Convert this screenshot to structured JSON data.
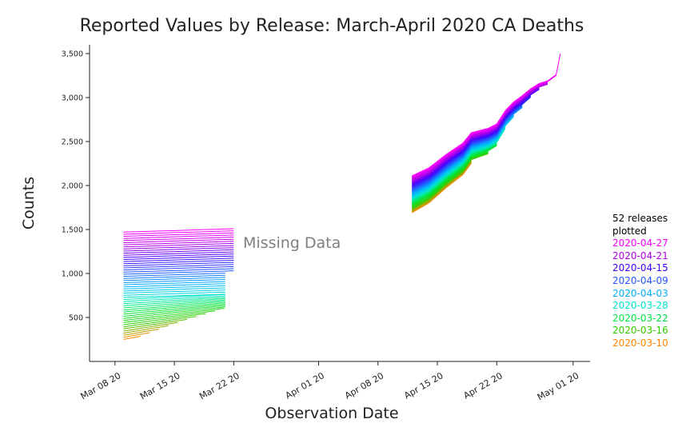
{
  "chart_data": {
    "type": "line",
    "title": "Reported Values by Release: March-April 2020 CA Deaths",
    "xlabel": "Observation Date",
    "ylabel": "Counts",
    "annotation": "Missing Data",
    "x_range": [
      "2020-03-05",
      "2020-05-03"
    ],
    "ylim": [
      0,
      3600
    ],
    "x_ticks": [
      {
        "date": "2020-03-08",
        "label": "Mar 08 20"
      },
      {
        "date": "2020-03-15",
        "label": "Mar 15 20"
      },
      {
        "date": "2020-03-22",
        "label": "Mar 22 20"
      },
      {
        "date": "2020-04-01",
        "label": "Apr 01 20"
      },
      {
        "date": "2020-04-08",
        "label": "Apr 08 20"
      },
      {
        "date": "2020-04-15",
        "label": "Apr 15 20"
      },
      {
        "date": "2020-04-22",
        "label": "Apr 22 20"
      },
      {
        "date": "2020-05-01",
        "label": "May 01 20"
      }
    ],
    "y_ticks": [
      {
        "value": 500,
        "label": "500"
      },
      {
        "value": 1000,
        "label": "1,000"
      },
      {
        "value": 1500,
        "label": "1,500"
      },
      {
        "value": 2000,
        "label": "2,000"
      },
      {
        "value": 2500,
        "label": "2,500"
      },
      {
        "value": 3000,
        "label": "3,000"
      },
      {
        "value": 3500,
        "label": "3,500"
      }
    ],
    "grid": false,
    "legend_position": "right",
    "legend_title": "52 releases\nplotted",
    "legend": [
      {
        "label": "2020-04-27",
        "color": "#ff00ff"
      },
      {
        "label": "2020-04-21",
        "color": "#b300e6"
      },
      {
        "label": "2020-04-15",
        "color": "#4400ff"
      },
      {
        "label": "2020-04-09",
        "color": "#2255ff"
      },
      {
        "label": "2020-04-03",
        "color": "#00b0ff"
      },
      {
        "label": "2020-03-28",
        "color": "#00e6cc"
      },
      {
        "label": "2020-03-22",
        "color": "#00e640"
      },
      {
        "label": "2020-03-16",
        "color": "#33cc00"
      },
      {
        "label": "2020-03-10",
        "color": "#ff8800"
      }
    ],
    "release_count": 52,
    "march_segment": {
      "start": "2020-03-09",
      "end": "2020-03-21",
      "last_end": "2020-03-22",
      "first_values": [
        250,
        250
      ],
      "last_values": [
        1470,
        1485
      ]
    },
    "april_segment": {
      "start": "2020-04-12",
      "end": "2020-04-29",
      "first_values": [
        1690,
        3240
      ],
      "last_values": [
        2110,
        3500
      ]
    }
  }
}
